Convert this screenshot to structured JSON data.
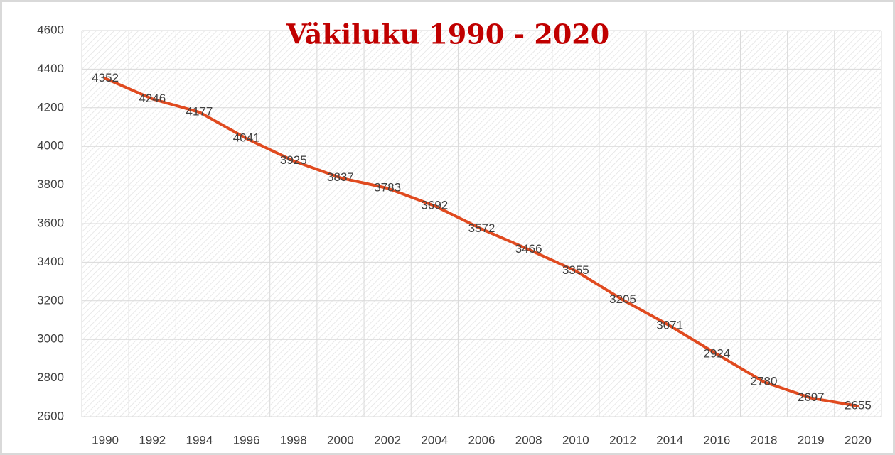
{
  "chart_data": {
    "type": "line",
    "title": "Väkiluku 1990 - 2020",
    "categories": [
      "1990",
      "1992",
      "1994",
      "1996",
      "1998",
      "2000",
      "2002",
      "2004",
      "2006",
      "2008",
      "2010",
      "2012",
      "2014",
      "2016",
      "2018",
      "2019",
      "2020"
    ],
    "series": [
      {
        "name": "Väkiluku",
        "color": "#e04a1f",
        "values": [
          4352,
          4246,
          4177,
          4041,
          3925,
          3837,
          3783,
          3692,
          3572,
          3466,
          3355,
          3205,
          3071,
          2924,
          2780,
          2697,
          2655
        ]
      }
    ],
    "ylim": [
      2600,
      4600
    ],
    "yticks": [
      2600,
      2800,
      3000,
      3200,
      3400,
      3600,
      3800,
      4000,
      4200,
      4400,
      4600
    ],
    "grid": true
  }
}
